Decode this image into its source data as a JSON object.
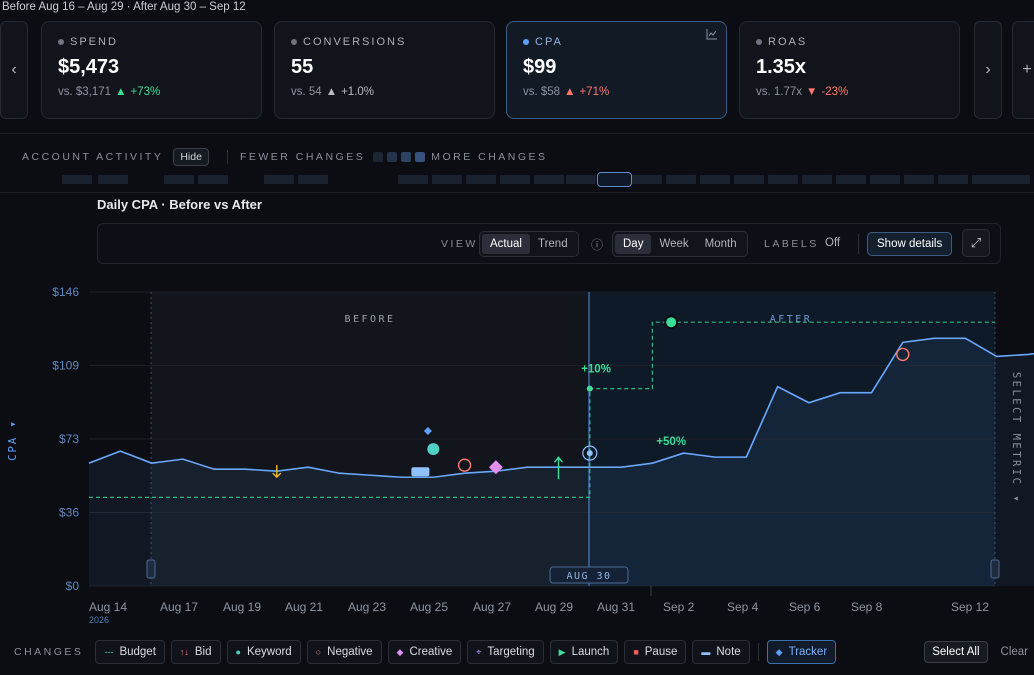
{
  "range_label": "Before Aug 16 – Aug 29 · After Aug 30 – Sep 12",
  "nav": {
    "prev": "‹",
    "next": "›",
    "add": "+"
  },
  "cards": [
    {
      "label": "SPEND",
      "value": "$5,473",
      "vs": "vs. $3,171",
      "arrow": "▲",
      "change": "+73%",
      "tone": "good",
      "active": false
    },
    {
      "label": "CONVERSIONS",
      "value": "55",
      "vs": "vs. 54",
      "arrow": "▲",
      "change": "+1.0%",
      "tone": "neutral",
      "active": false
    },
    {
      "label": "CPA",
      "value": "$99",
      "vs": "vs. $58",
      "arrow": "▲",
      "change": "+71%",
      "tone": "bad",
      "active": true
    },
    {
      "label": "ROAS",
      "value": "1.35x",
      "vs": "vs. 1.77x",
      "arrow": "▼",
      "change": "-23%",
      "tone": "bad",
      "active": false
    }
  ],
  "activity": {
    "label": "ACCOUNT ACTIVITY",
    "hide": "Hide",
    "fewer": "FEWER CHANGES",
    "more": "MORE CHANGES",
    "scale_colors": [
      "#1c2534",
      "#24324a",
      "#2d4263",
      "#37527c"
    ]
  },
  "chart_title": "Daily CPA · Before vs After",
  "toolbar": {
    "view_label": "VIEW",
    "view_options": [
      "Actual",
      "Trend"
    ],
    "view_selected": "Actual",
    "info_icon": "ⓘ",
    "period_options": [
      "Day",
      "Week",
      "Month"
    ],
    "period_selected": "Day",
    "labels_label": "LABELS",
    "labels_value": "Off",
    "show_details": "Show details",
    "expand_icon": "⤢"
  },
  "chart_data": {
    "type": "line",
    "ylabel": "CPA ▾",
    "y_ticks": [
      "$0",
      "$36",
      "$73",
      "$109",
      "$146"
    ],
    "ylim": [
      0,
      146
    ],
    "x_ticks": [
      "Aug 14",
      "Aug 17",
      "Aug 19",
      "Aug 21",
      "Aug 23",
      "Aug 25",
      "Aug 27",
      "Aug 29",
      "Aug 31",
      "Sep 2",
      "Sep 4",
      "Sep 6",
      "Sep 8",
      "Sep 12"
    ],
    "x_year": "2026",
    "before_label": "BEFORE",
    "after_label": "AFTER",
    "split_label": "AUG 30",
    "right_label": "SELECT METRIC ▾",
    "series": [
      {
        "values": [
          [
            0,
            61
          ],
          [
            1,
            67
          ],
          [
            2,
            61
          ],
          [
            3,
            63
          ],
          [
            4,
            58
          ],
          [
            5,
            58
          ],
          [
            6,
            57
          ],
          [
            7,
            59
          ],
          [
            8,
            56
          ],
          [
            9,
            55
          ],
          [
            10,
            54
          ],
          [
            11,
            54
          ],
          [
            12,
            56
          ],
          [
            13,
            57
          ],
          [
            14,
            59
          ],
          [
            15,
            59
          ],
          [
            16,
            59
          ],
          [
            17,
            59
          ],
          [
            18,
            61
          ],
          [
            19,
            66
          ],
          [
            20,
            64
          ],
          [
            21,
            64
          ],
          [
            22,
            99
          ],
          [
            23,
            91
          ],
          [
            24,
            96
          ],
          [
            25,
            96
          ],
          [
            26,
            121
          ],
          [
            27,
            123
          ],
          [
            28,
            123
          ],
          [
            29,
            114
          ],
          [
            30,
            115
          ],
          [
            31,
            117
          ],
          [
            32,
            115
          ]
        ]
      }
    ],
    "budget_step": [
      [
        0,
        44
      ],
      [
        16,
        44
      ],
      [
        16,
        98
      ],
      [
        18,
        98
      ],
      [
        18,
        131
      ],
      [
        34,
        131
      ]
    ],
    "annotations": [
      {
        "text": "+10%",
        "x": 16.2,
        "y": 106,
        "color": "#3ddc97"
      },
      {
        "text": "+50%",
        "x": 18.6,
        "y": 70,
        "color": "#3ddc97"
      }
    ]
  },
  "changes": {
    "label": "CHANGES",
    "chips": [
      {
        "icon": "budget-icon",
        "glyph": "---",
        "color": "#3ddc97",
        "label": "Budget",
        "on": false
      },
      {
        "icon": "bid-icon",
        "glyph": "↑↓",
        "color": "#ff7a6b",
        "label": "Bid",
        "on": false
      },
      {
        "icon": "keyword-icon",
        "glyph": "●",
        "color": "#4fd1c5",
        "label": "Keyword",
        "on": false
      },
      {
        "icon": "negative-icon",
        "glyph": "○",
        "color": "#ff7a6b",
        "label": "Negative",
        "on": false
      },
      {
        "icon": "creative-icon",
        "glyph": "◆",
        "color": "#e08ef0",
        "label": "Creative",
        "on": false
      },
      {
        "icon": "targeting-icon",
        "glyph": "⌖",
        "color": "#b48cff",
        "label": "Targeting",
        "on": false
      },
      {
        "icon": "launch-icon",
        "glyph": "▶",
        "color": "#3ddc97",
        "label": "Launch",
        "on": false
      },
      {
        "icon": "pause-icon",
        "glyph": "■",
        "color": "#ff5a5a",
        "label": "Pause",
        "on": false
      },
      {
        "icon": "note-icon",
        "glyph": "▬",
        "color": "#8fc1ff",
        "label": "Note",
        "on": false
      },
      {
        "icon": "tracker-icon",
        "glyph": "◆",
        "color": "#5ea2ff",
        "label": "Tracker",
        "on": true
      }
    ],
    "select_all": "Select All",
    "clear": "Clear"
  }
}
